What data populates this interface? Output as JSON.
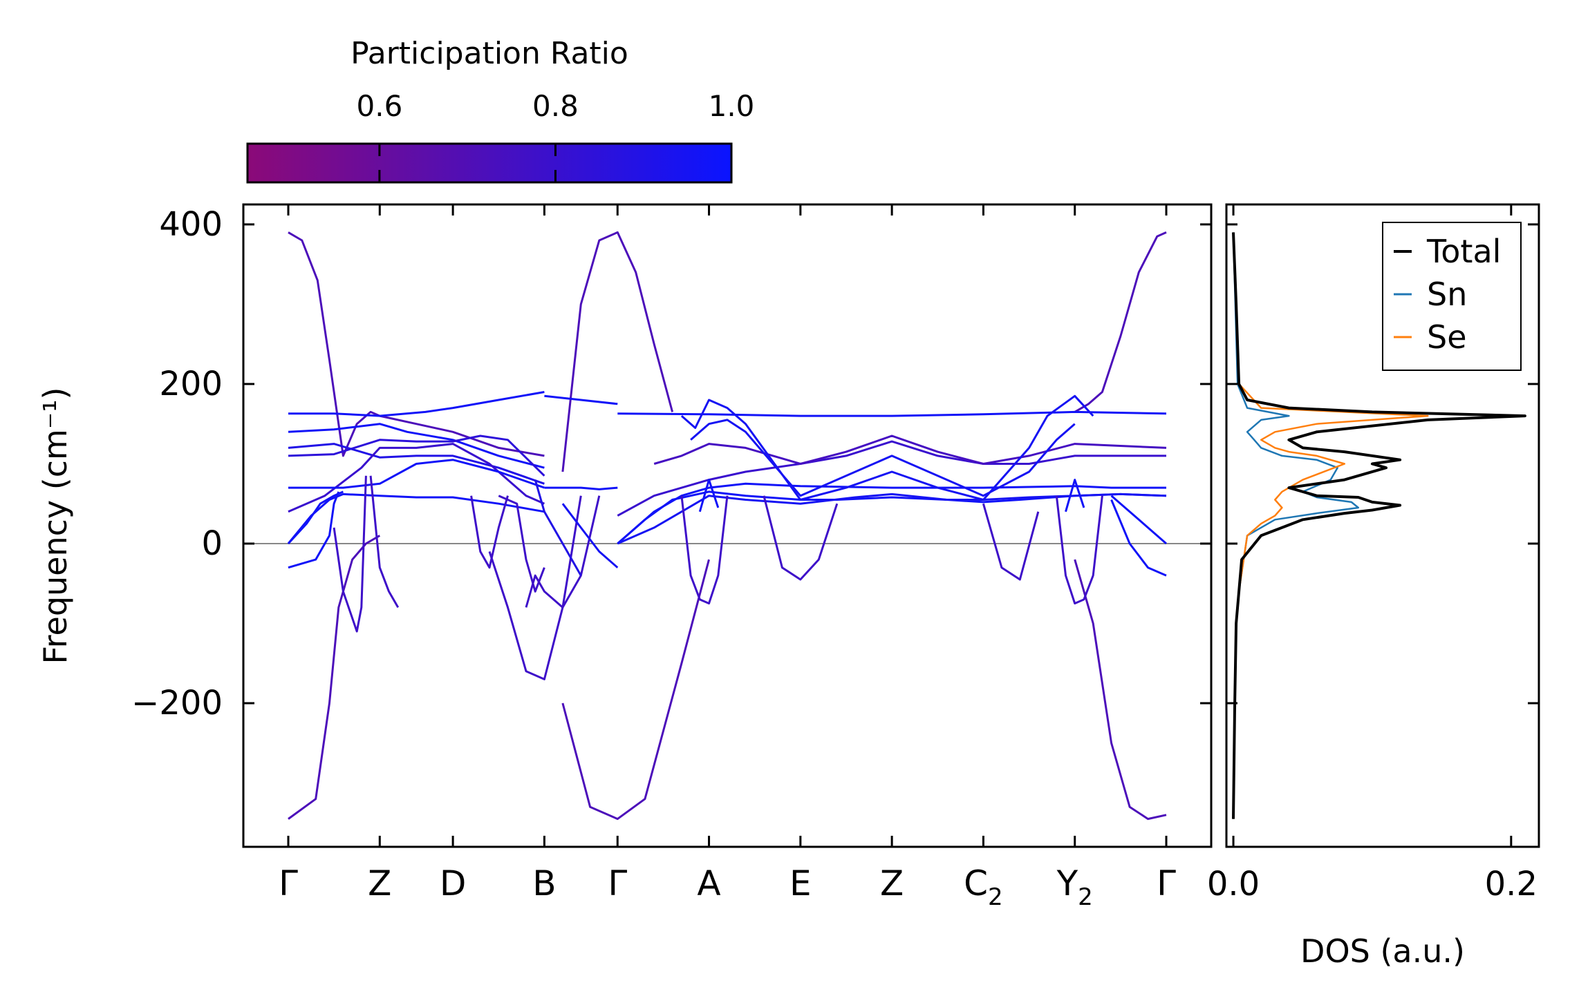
{
  "chart_data": [
    {
      "type": "line",
      "subtype": "phonon-band-structure",
      "title": "",
      "xlabel": "",
      "ylabel": "Frequency (cm⁻¹)",
      "ylim": [
        -380,
        425
      ],
      "yticks": [
        -200,
        0,
        200,
        400
      ],
      "ytick_labels": [
        "−200",
        "0",
        "200",
        "400"
      ],
      "high_symmetry_points": [
        {
          "label": "Γ",
          "sub": ""
        },
        {
          "label": "Z",
          "sub": ""
        },
        {
          "label": "D",
          "sub": ""
        },
        {
          "label": "B",
          "sub": ""
        },
        {
          "label": "Γ",
          "sub": ""
        },
        {
          "label": "A",
          "sub": ""
        },
        {
          "label": "E",
          "sub": ""
        },
        {
          "label": "Z",
          "sub": ""
        },
        {
          "label": "C",
          "sub": "2"
        },
        {
          "label": "Y",
          "sub": "2"
        },
        {
          "label": "Γ",
          "sub": ""
        }
      ],
      "path_positions": [
        0,
        1,
        1.8,
        2.8,
        3.6,
        4.6,
        5.6,
        6.6,
        7.6,
        8.6,
        9.6
      ],
      "zero_line": true,
      "colorbar": {
        "label": "Participation Ratio",
        "range": [
          0.45,
          1.0
        ],
        "ticks": [
          0.6,
          0.8,
          1.0
        ],
        "tick_labels": [
          "0.6",
          "0.8",
          "1.0"
        ],
        "color_low": "#8b0a78",
        "color_high": "#0a14ff"
      },
      "bands": [
        {
          "pr": 0.72,
          "x": [
            0,
            0.15,
            0.32,
            0.45,
            0.6,
            0.75,
            0.9,
            1.0
          ],
          "y": [
            390,
            380,
            330,
            230,
            110,
            150,
            165,
            160
          ]
        },
        {
          "pr": 0.72,
          "x": [
            1.0,
            1.4,
            1.8,
            2.3,
            2.8
          ],
          "y": [
            160,
            150,
            140,
            120,
            110
          ]
        },
        {
          "pr": 0.72,
          "x": [
            0,
            0.3,
            0.45,
            0.55,
            0.7,
            0.85,
            1.0
          ],
          "y": [
            -345,
            -320,
            -200,
            -80,
            -20,
            0,
            10
          ]
        },
        {
          "pr": 0.72,
          "x": [
            3.0,
            3.3,
            3.6,
            3.9,
            4.3,
            4.6
          ],
          "y": [
            -200,
            -330,
            -345,
            -320,
            -150,
            -20
          ]
        },
        {
          "pr": 0.72,
          "x": [
            3.0,
            3.2,
            3.4,
            3.6,
            3.8,
            4.0,
            4.2
          ],
          "y": [
            90,
            300,
            380,
            390,
            340,
            250,
            165
          ]
        },
        {
          "pr": 0.72,
          "x": [
            8.6,
            8.75,
            8.9,
            9.1,
            9.3,
            9.5,
            9.6
          ],
          "y": [
            165,
            175,
            190,
            260,
            340,
            385,
            390
          ]
        },
        {
          "pr": 0.72,
          "x": [
            8.6,
            8.8,
            9.0,
            9.2,
            9.4,
            9.6
          ],
          "y": [
            -20,
            -100,
            -250,
            -330,
            -345,
            -340
          ]
        },
        {
          "pr": 0.97,
          "x": [
            0,
            0.5,
            1.0,
            1.5,
            1.8,
            2.3,
            2.8
          ],
          "y": [
            163,
            163,
            160,
            165,
            170,
            180,
            190
          ]
        },
        {
          "pr": 0.97,
          "x": [
            2.8,
            3.2,
            3.6
          ],
          "y": [
            185,
            180,
            175
          ]
        },
        {
          "pr": 0.97,
          "x": [
            3.6,
            4.6,
            5.6,
            6.6,
            7.6,
            8.6,
            9.6
          ],
          "y": [
            163,
            162,
            160,
            160,
            162,
            165,
            163
          ]
        },
        {
          "pr": 0.97,
          "x": [
            0,
            0.5,
            1.0,
            1.3,
            1.8,
            2.3,
            2.8
          ],
          "y": [
            140,
            143,
            150,
            140,
            130,
            110,
            95
          ]
        },
        {
          "pr": 0.85,
          "x": [
            0,
            0.5,
            1.0,
            1.4,
            1.8,
            2.1,
            2.4,
            2.8
          ],
          "y": [
            110,
            112,
            130,
            128,
            128,
            135,
            130,
            85
          ]
        },
        {
          "pr": 0.9,
          "x": [
            0,
            0.5,
            1.0,
            1.4,
            1.8,
            2.3,
            2.8
          ],
          "y": [
            120,
            125,
            108,
            110,
            110,
            95,
            75
          ]
        },
        {
          "pr": 0.8,
          "x": [
            0,
            0.4,
            0.8,
            1.0,
            1.4,
            1.8,
            2.2,
            2.6,
            2.8
          ],
          "y": [
            40,
            60,
            95,
            120,
            120,
            125,
            100,
            60,
            50
          ]
        },
        {
          "pr": 0.97,
          "x": [
            0,
            0.4,
            0.6,
            1.0,
            1.4,
            1.8,
            2.3,
            2.8
          ],
          "y": [
            70,
            70,
            70,
            75,
            100,
            105,
            90,
            70
          ]
        },
        {
          "pr": 0.97,
          "x": [
            0,
            0.25,
            0.45,
            0.6,
            1.0,
            1.4,
            1.8,
            2.3,
            2.8
          ],
          "y": [
            0,
            35,
            55,
            62,
            60,
            58,
            58,
            50,
            40
          ]
        },
        {
          "pr": 0.97,
          "x": [
            0,
            0.2,
            0.35,
            0.5,
            0.6
          ],
          "y": [
            0,
            25,
            50,
            60,
            65
          ]
        },
        {
          "pr": 0.97,
          "x": [
            0,
            0.3,
            0.45,
            0.5,
            0.55
          ],
          "y": [
            -30,
            -20,
            10,
            50,
            65
          ]
        },
        {
          "pr": 0.78,
          "x": [
            0.5,
            0.6,
            0.75,
            0.8,
            0.85
          ],
          "y": [
            20,
            -60,
            -110,
            -80,
            85
          ]
        },
        {
          "pr": 0.78,
          "x": [
            0.9,
            1.0,
            1.1,
            1.2
          ],
          "y": [
            85,
            -30,
            -60,
            -80
          ]
        },
        {
          "pr": 0.78,
          "x": [
            2.0,
            2.1,
            2.2,
            2.3,
            2.4
          ],
          "y": [
            60,
            -10,
            -30,
            20,
            60
          ]
        },
        {
          "pr": 0.78,
          "x": [
            2.3,
            2.5,
            2.6,
            2.7,
            2.8
          ],
          "y": [
            60,
            50,
            -20,
            -60,
            -30
          ]
        },
        {
          "pr": 0.78,
          "x": [
            2.2,
            2.4,
            2.6,
            2.8,
            3.0,
            3.2
          ],
          "y": [
            -10,
            -80,
            -160,
            -170,
            -80,
            60
          ]
        },
        {
          "pr": 0.78,
          "x": [
            2.6,
            2.7,
            2.8,
            3.0,
            3.2,
            3.4
          ],
          "y": [
            -80,
            -40,
            -60,
            -80,
            -40,
            60
          ]
        },
        {
          "pr": 0.9,
          "x": [
            2.7,
            2.8,
            3.0,
            3.2
          ],
          "y": [
            80,
            40,
            0,
            -40
          ]
        },
        {
          "pr": 0.97,
          "x": [
            2.8,
            3.0,
            3.2,
            3.4,
            3.6
          ],
          "y": [
            70,
            70,
            70,
            68,
            70
          ]
        },
        {
          "pr": 0.95,
          "x": [
            3.0,
            3.2,
            3.4,
            3.6
          ],
          "y": [
            50,
            20,
            -10,
            -30
          ]
        },
        {
          "pr": 0.97,
          "x": [
            3.6,
            3.9,
            4.2,
            4.6,
            5.0,
            5.6,
            6.0,
            6.6,
            7.2,
            7.6,
            8.0,
            8.6,
            9.1,
            9.6
          ],
          "y": [
            0,
            30,
            55,
            65,
            60,
            55,
            55,
            58,
            55,
            52,
            55,
            60,
            62,
            60
          ]
        },
        {
          "pr": 0.95,
          "x": [
            3.6,
            4.0,
            4.3,
            4.6,
            5.0,
            5.6,
            6.2,
            6.6,
            7.2,
            7.6,
            8.1,
            8.6,
            9.1,
            9.6
          ],
          "y": [
            0,
            20,
            40,
            60,
            55,
            50,
            58,
            62,
            55,
            55,
            58,
            60,
            62,
            60
          ]
        },
        {
          "pr": 0.97,
          "x": [
            3.6,
            4.0,
            4.3,
            4.6,
            5.0,
            5.6,
            6.6,
            7.6,
            8.6,
            9.0,
            9.6
          ],
          "y": [
            0,
            40,
            60,
            70,
            75,
            72,
            70,
            70,
            72,
            70,
            70
          ]
        },
        {
          "pr": 0.8,
          "x": [
            3.6,
            4.0,
            4.6,
            5.0,
            5.6,
            6.1,
            6.6,
            7.1,
            7.6,
            8.1,
            8.6,
            9.6
          ],
          "y": [
            35,
            60,
            80,
            90,
            100,
            110,
            128,
            110,
            100,
            100,
            110,
            110
          ]
        },
        {
          "pr": 0.75,
          "x": [
            4.0,
            4.3,
            4.6,
            5.0,
            5.6,
            6.1,
            6.6,
            7.1,
            7.6,
            8.1,
            8.6,
            9.6
          ],
          "y": [
            100,
            110,
            125,
            120,
            100,
            115,
            135,
            115,
            100,
            110,
            125,
            120
          ]
        },
        {
          "pr": 0.95,
          "x": [
            4.4,
            4.6,
            4.8,
            5.0,
            5.6,
            6.1,
            6.6,
            7.1,
            7.6,
            8.1,
            8.4,
            8.6
          ],
          "y": [
            130,
            150,
            155,
            140,
            60,
            85,
            110,
            85,
            60,
            90,
            130,
            150
          ]
        },
        {
          "pr": 0.95,
          "x": [
            4.3,
            4.45,
            4.6,
            4.8,
            5.0,
            5.6,
            6.1,
            6.6,
            7.1,
            7.6,
            8.1,
            8.3,
            8.6,
            8.8
          ],
          "y": [
            160,
            145,
            180,
            170,
            150,
            55,
            70,
            90,
            70,
            55,
            120,
            160,
            185,
            160
          ]
        },
        {
          "pr": 0.78,
          "x": [
            4.3,
            4.4,
            4.5,
            4.6,
            4.7,
            4.8
          ],
          "y": [
            60,
            -40,
            -70,
            -75,
            -40,
            60
          ]
        },
        {
          "pr": 0.78,
          "x": [
            5.2,
            5.4,
            5.6,
            5.8,
            6.0
          ],
          "y": [
            60,
            -30,
            -45,
            -20,
            50
          ]
        },
        {
          "pr": 0.78,
          "x": [
            7.6,
            7.8,
            8.0,
            8.2
          ],
          "y": [
            50,
            -30,
            -45,
            40
          ]
        },
        {
          "pr": 0.78,
          "x": [
            8.4,
            8.5,
            8.6,
            8.7,
            8.8,
            8.9
          ],
          "y": [
            60,
            -40,
            -75,
            -70,
            -40,
            60
          ]
        },
        {
          "pr": 0.97,
          "x": [
            4.5,
            4.6,
            4.7
          ],
          "y": [
            40,
            80,
            45
          ]
        },
        {
          "pr": 0.97,
          "x": [
            8.5,
            8.6,
            8.7
          ],
          "y": [
            40,
            80,
            45
          ]
        },
        {
          "pr": 0.97,
          "x": [
            9.0,
            9.3,
            9.6
          ],
          "y": [
            60,
            30,
            0
          ]
        },
        {
          "pr": 0.97,
          "x": [
            9.0,
            9.2,
            9.4,
            9.6
          ],
          "y": [
            55,
            0,
            -30,
            -40
          ]
        }
      ]
    },
    {
      "type": "line",
      "subtype": "density-of-states",
      "title": "",
      "xlabel": "DOS (a.u.)",
      "ylabel": "",
      "xlim": [
        -0.005,
        0.22
      ],
      "xticks": [
        0.0,
        0.2
      ],
      "xtick_labels": [
        "0.0",
        "0.2"
      ],
      "ylim": [
        -380,
        425
      ],
      "legend": {
        "placement": "top-right",
        "entries": [
          "Total",
          "Sn",
          "Se"
        ]
      },
      "series": [
        {
          "name": "Total",
          "color": "#000000",
          "x": [
            0.0,
            0.001,
            0.002,
            0.004,
            0.006,
            0.02,
            0.05,
            0.08,
            0.1,
            0.12,
            0.1,
            0.09,
            0.06,
            0.04,
            0.08,
            0.11,
            0.1,
            0.12,
            0.08,
            0.05,
            0.04,
            0.06,
            0.14,
            0.21,
            0.1,
            0.04,
            0.01,
            0.004,
            0.002,
            0.0
          ],
          "y": [
            -345,
            -200,
            -100,
            -60,
            -20,
            10,
            30,
            38,
            42,
            48,
            52,
            58,
            60,
            70,
            80,
            95,
            100,
            105,
            115,
            120,
            130,
            140,
            155,
            160,
            165,
            170,
            180,
            200,
            300,
            390
          ]
        },
        {
          "name": "Sn",
          "color": "#1f77b4",
          "x": [
            0.0,
            0.001,
            0.002,
            0.004,
            0.01,
            0.03,
            0.06,
            0.09,
            0.085,
            0.06,
            0.05,
            0.07,
            0.075,
            0.06,
            0.035,
            0.02,
            0.015,
            0.01,
            0.02,
            0.04,
            0.01,
            0.003,
            0.0
          ],
          "y": [
            -345,
            -200,
            -100,
            -60,
            10,
            30,
            38,
            45,
            52,
            58,
            65,
            80,
            95,
            105,
            110,
            120,
            130,
            140,
            155,
            160,
            170,
            200,
            390
          ]
        },
        {
          "name": "Se",
          "color": "#ff7f0e",
          "x": [
            0.0,
            0.001,
            0.002,
            0.004,
            0.01,
            0.02,
            0.03,
            0.035,
            0.03,
            0.035,
            0.05,
            0.08,
            0.06,
            0.04,
            0.03,
            0.02,
            0.03,
            0.06,
            0.14,
            0.08,
            0.02,
            0.004,
            0.0
          ],
          "y": [
            -345,
            -200,
            -100,
            -60,
            10,
            25,
            35,
            45,
            55,
            65,
            80,
            100,
            110,
            115,
            120,
            130,
            140,
            150,
            160,
            165,
            170,
            200,
            390
          ]
        }
      ]
    }
  ]
}
